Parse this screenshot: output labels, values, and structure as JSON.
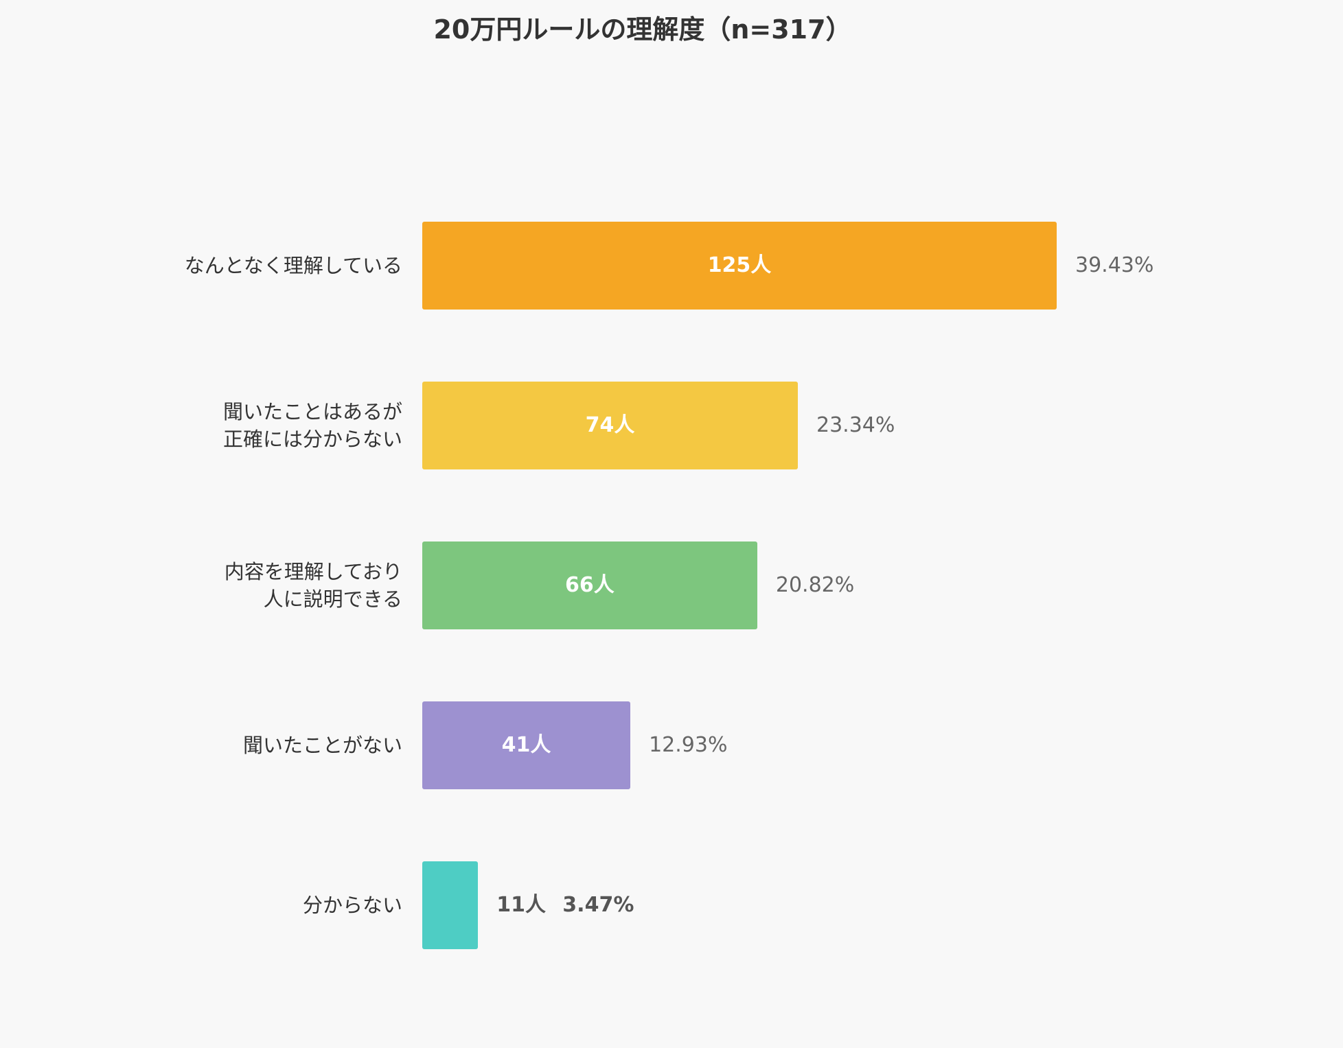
{
  "chart_data": {
    "type": "bar",
    "orientation": "horizontal",
    "title": "20万円ルールの理解度（n=317）",
    "categories": [
      "なんとなく理解している",
      "聞いたことはあるが\n正確には分からない",
      "内容を理解しており\n人に説明できる",
      "聞いたことがない",
      "分からない"
    ],
    "values": [
      125,
      74,
      66,
      41,
      11
    ],
    "value_labels": [
      "125人",
      "74人",
      "66人",
      "41人",
      "11人"
    ],
    "percent_labels": [
      "39.43%",
      "23.34%",
      "20.82%",
      "12.93%",
      "3.47%"
    ],
    "colors": [
      "#f5a623",
      "#f4c842",
      "#7dc67e",
      "#9d91d0",
      "#4ecdc4"
    ],
    "xlim": [
      0,
      125
    ],
    "grid": false,
    "legend": "none"
  }
}
